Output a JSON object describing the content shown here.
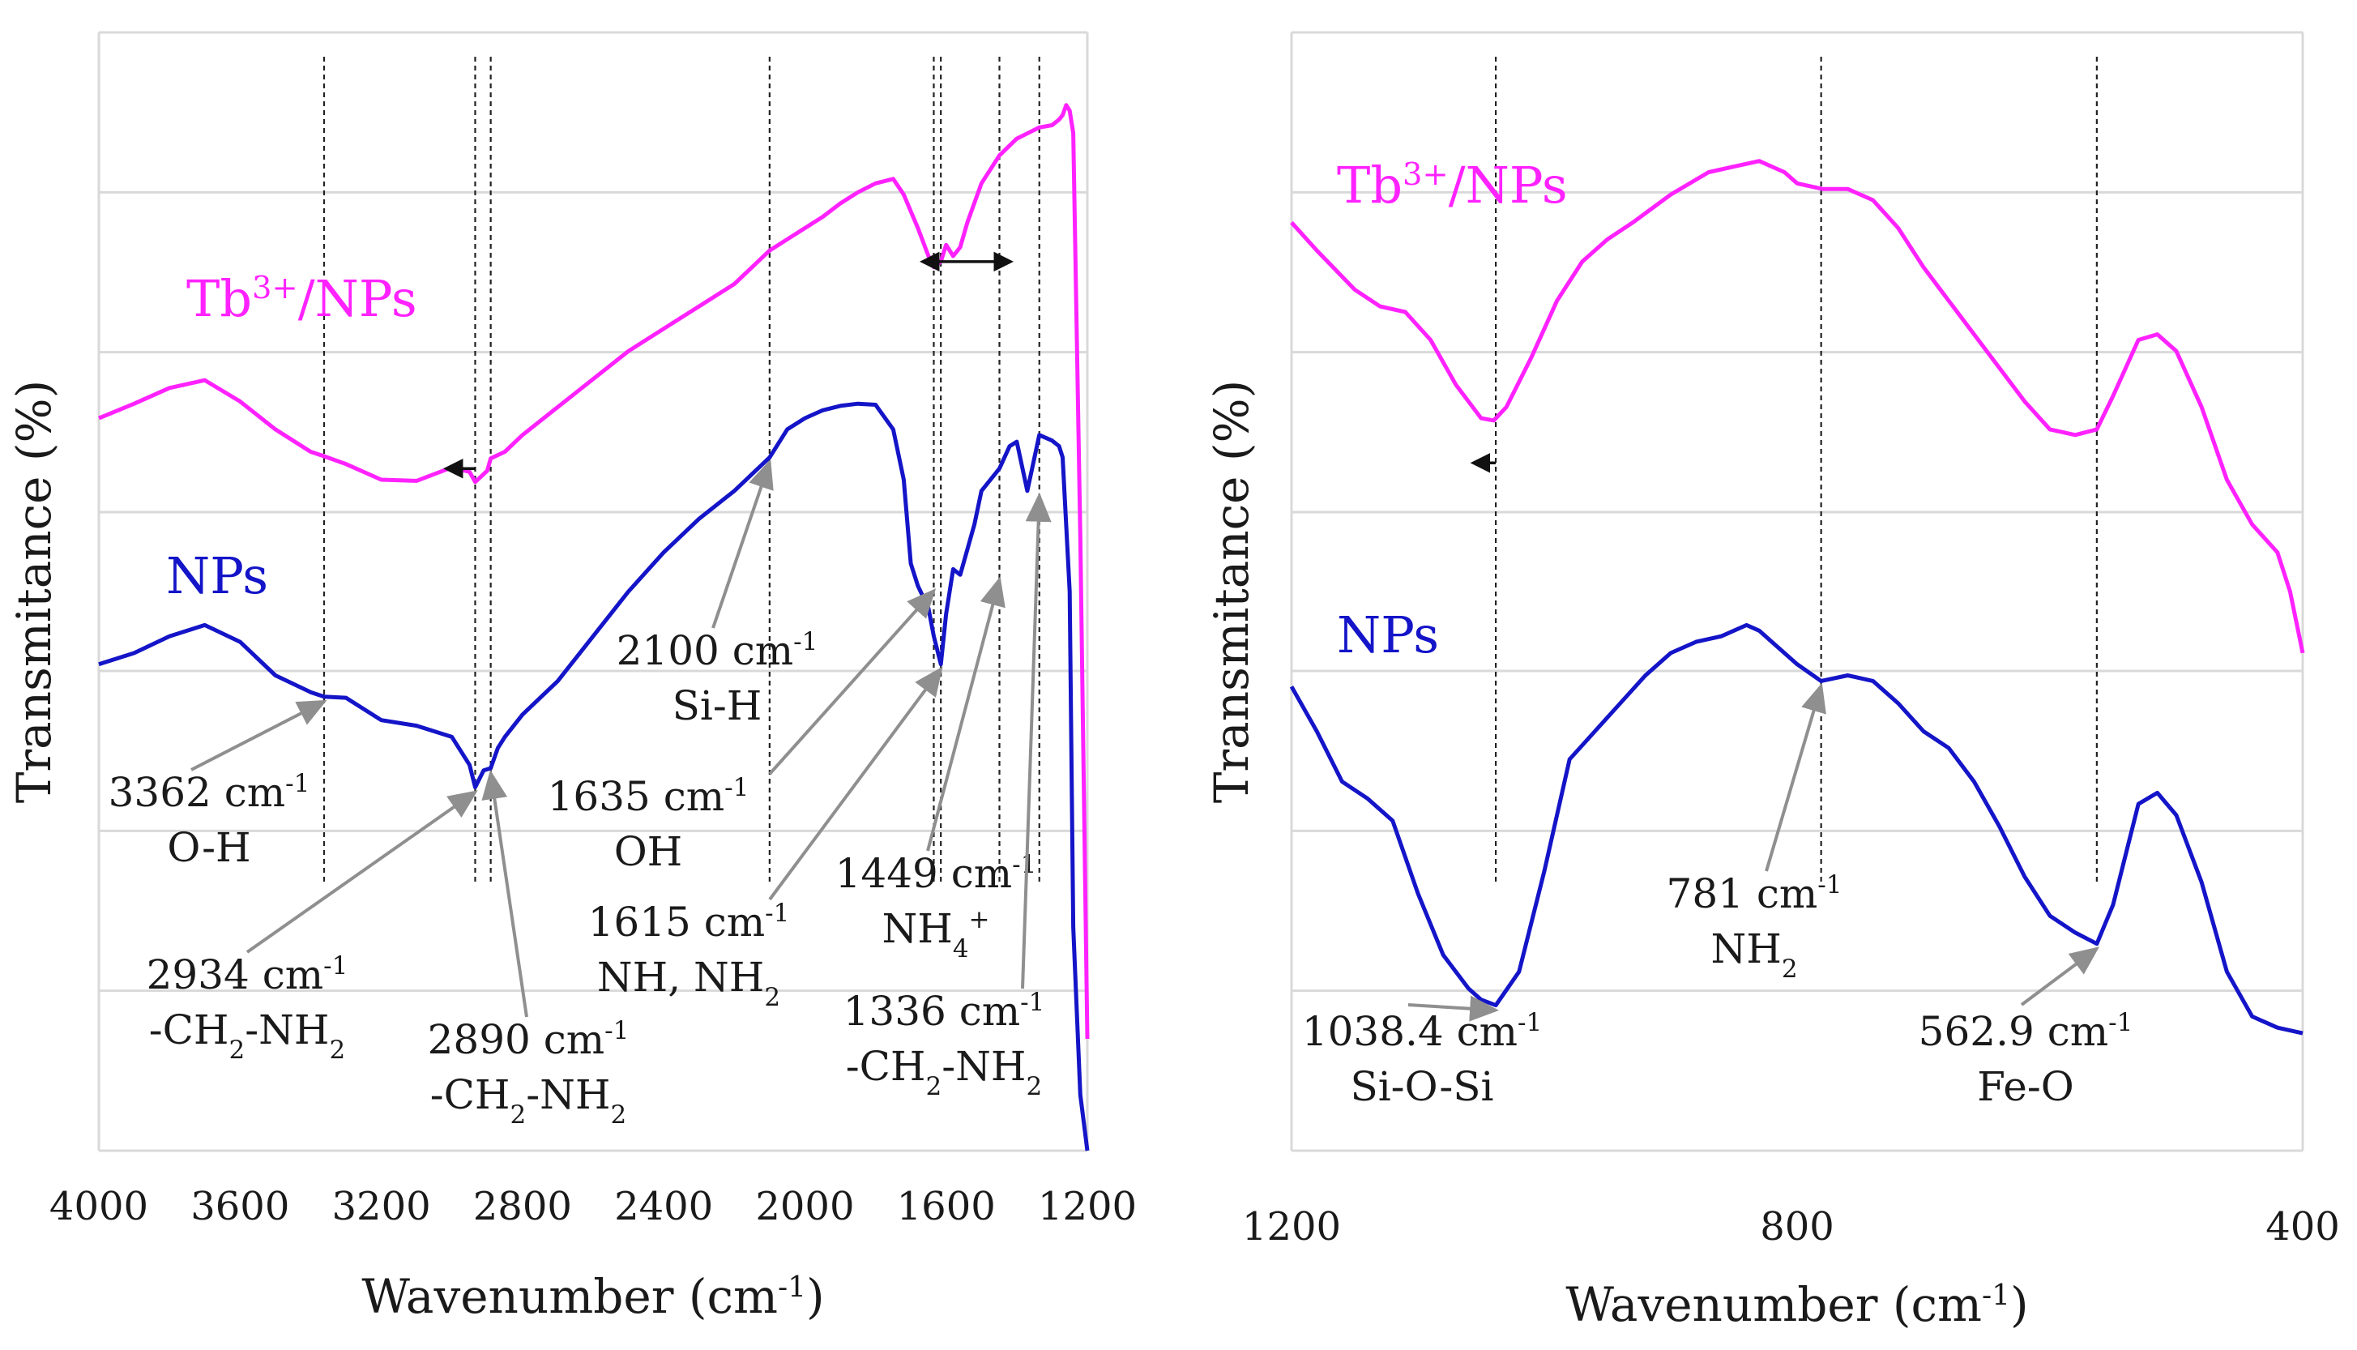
{
  "chart_data": [
    {
      "type": "line",
      "title": "",
      "xlabel": "Wavenumber (cm-1)",
      "ylabel": "Transmitance (%)",
      "xlim": [
        4000,
        1200
      ],
      "ylim": [
        0,
        100
      ],
      "grid": "horizontal",
      "x_ticks": [
        "4000",
        "3600",
        "3200",
        "2800",
        "2400",
        "2000",
        "1600",
        "1200"
      ],
      "x_tick_values": [
        4000,
        3600,
        3200,
        2800,
        2400,
        2000,
        1600,
        1200
      ],
      "y_gridlines": [
        0,
        14.3,
        28.6,
        42.9,
        57.1,
        71.4,
        85.7,
        100
      ],
      "series": [
        {
          "name": "Tb3+/NPs",
          "color": "#ff22ff",
          "x": [
            4000,
            3900,
            3800,
            3700,
            3600,
            3500,
            3400,
            3362,
            3300,
            3200,
            3100,
            3000,
            2950,
            2934,
            2900,
            2890,
            2850,
            2800,
            2700,
            2600,
            2500,
            2400,
            2300,
            2200,
            2150,
            2100,
            2050,
            2000,
            1950,
            1900,
            1850,
            1800,
            1750,
            1720,
            1700,
            1680,
            1650,
            1635,
            1615,
            1600,
            1580,
            1560,
            1540,
            1500,
            1449,
            1400,
            1336,
            1300,
            1280,
            1270,
            1260,
            1250,
            1240,
            1220,
            1200
          ],
          "values": [
            65.5,
            66.8,
            68.2,
            68.9,
            67.0,
            64.5,
            62.5,
            62.1,
            61.4,
            60.0,
            59.9,
            61.1,
            60.7,
            59.8,
            60.8,
            61.9,
            62.5,
            64.0,
            66.5,
            69.0,
            71.5,
            73.5,
            75.5,
            77.5,
            79.0,
            80.5,
            81.5,
            82.5,
            83.5,
            84.7,
            85.7,
            86.5,
            86.9,
            85.5,
            84.0,
            82.5,
            80.0,
            79.0,
            79.5,
            81.0,
            80.0,
            80.8,
            83.0,
            86.5,
            89.0,
            90.5,
            91.5,
            91.7,
            92.2,
            92.6,
            93.5,
            93.0,
            91.0,
            55.0,
            10.0
          ]
        },
        {
          "name": "NPs",
          "color": "#1414c8",
          "x": [
            4000,
            3900,
            3800,
            3700,
            3600,
            3500,
            3400,
            3362,
            3300,
            3200,
            3100,
            3000,
            2950,
            2934,
            2910,
            2890,
            2870,
            2850,
            2800,
            2700,
            2600,
            2500,
            2400,
            2300,
            2200,
            2100,
            2050,
            2000,
            1950,
            1900,
            1850,
            1800,
            1750,
            1720,
            1700,
            1680,
            1650,
            1635,
            1615,
            1600,
            1580,
            1560,
            1520,
            1500,
            1449,
            1420,
            1400,
            1370,
            1336,
            1300,
            1280,
            1270,
            1250,
            1240,
            1220,
            1200
          ],
          "values": [
            43.5,
            44.5,
            46.0,
            47.0,
            45.5,
            42.5,
            41.0,
            40.6,
            40.5,
            38.5,
            38.0,
            37.0,
            34.5,
            32.5,
            34.0,
            34.2,
            36.0,
            37.0,
            39.0,
            42.0,
            46.0,
            50.0,
            53.5,
            56.5,
            59.0,
            62.0,
            64.5,
            65.5,
            66.2,
            66.6,
            66.8,
            66.7,
            64.5,
            60.0,
            52.5,
            50.5,
            48.5,
            46.0,
            43.5,
            48.0,
            52.0,
            51.5,
            56.0,
            59.0,
            61.0,
            63.0,
            63.4,
            59.0,
            64.0,
            63.5,
            63.0,
            62.0,
            50.0,
            20.0,
            5.0,
            0.0
          ]
        }
      ],
      "legend": [
        {
          "label": "Tb",
          "sup": "3+",
          "rest": "/NPs",
          "series": "Tb3+/NPs"
        },
        {
          "label": "NPs",
          "sup": "",
          "rest": "",
          "series": "NPs"
        }
      ],
      "reference_lines": [
        3362,
        2934,
        2890,
        2100,
        1635,
        1615,
        1449,
        1336
      ],
      "annotations": [
        {
          "id": "a3362",
          "lines": [
            [
              {
                "t": "3362 cm"
              },
              {
                "t": "-1",
                "sup": true
              }
            ],
            [
              {
                "t": "O-H"
              }
            ]
          ],
          "x": 3362,
          "y": 40.6,
          "series": "NPs"
        },
        {
          "id": "a2934",
          "lines": [
            [
              {
                "t": "2934 cm"
              },
              {
                "t": "-1",
                "sup": true
              }
            ],
            [
              {
                "t": "-CH"
              },
              {
                "t": "2",
                "sub": true
              },
              {
                "t": "-NH"
              },
              {
                "t": "2",
                "sub": true
              }
            ]
          ],
          "x": 2934,
          "y": 32.5,
          "series": "NPs"
        },
        {
          "id": "a2890",
          "lines": [
            [
              {
                "t": "2890 cm"
              },
              {
                "t": "-1",
                "sup": true
              }
            ],
            [
              {
                "t": "-CH"
              },
              {
                "t": "2",
                "sub": true
              },
              {
                "t": "-NH"
              },
              {
                "t": "2",
                "sub": true
              }
            ]
          ],
          "x": 2890,
          "y": 34.2,
          "series": "NPs"
        },
        {
          "id": "a2100",
          "lines": [
            [
              {
                "t": "2100 cm"
              },
              {
                "t": "-1",
                "sup": true
              }
            ],
            [
              {
                "t": "Si-H"
              }
            ]
          ],
          "x": 2100,
          "y": 62.0,
          "series": "NPs"
        },
        {
          "id": "a1635",
          "lines": [
            [
              {
                "t": "1635 cm"
              },
              {
                "t": "-1",
                "sup": true
              }
            ],
            [
              {
                "t": "OH"
              }
            ]
          ],
          "x": 1635,
          "y": 50.5,
          "series": "NPs"
        },
        {
          "id": "a1615",
          "lines": [
            [
              {
                "t": "1615 cm"
              },
              {
                "t": "-1",
                "sup": true
              }
            ],
            [
              {
                "t": "NH, NH"
              },
              {
                "t": "2",
                "sub": true
              }
            ]
          ],
          "x": 1615,
          "y": 43.5,
          "series": "NPs"
        },
        {
          "id": "a1449",
          "lines": [
            [
              {
                "t": "1449 cm"
              },
              {
                "t": "-1",
                "sup": true
              }
            ],
            [
              {
                "t": "NH"
              },
              {
                "t": "4",
                "sub": true
              },
              {
                "t": "+",
                "sup": true
              }
            ]
          ],
          "x": 1449,
          "y": 51.5,
          "series": "NPs"
        },
        {
          "id": "a1336",
          "lines": [
            [
              {
                "t": "1336 cm"
              },
              {
                "t": "-1",
                "sup": true
              }
            ],
            [
              {
                "t": "-CH"
              },
              {
                "t": "2",
                "sub": true
              },
              {
                "t": "-NH"
              },
              {
                "t": "2",
                "sub": true
              }
            ]
          ],
          "x": 1336,
          "y": 59.0,
          "series": "NPs"
        }
      ],
      "shift_arrows": [
        {
          "from": 2934,
          "to": 2990,
          "y": 61.0,
          "style": "left"
        },
        {
          "from": 1635,
          "to": 1449,
          "y": 79.5,
          "style": "double"
        }
      ]
    },
    {
      "type": "line",
      "title": "",
      "xlabel": "Wavenumber (cm-1)",
      "ylabel": "Transmitance (%)",
      "xlim": [
        1200,
        400
      ],
      "ylim": [
        0,
        100
      ],
      "grid": "horizontal",
      "x_ticks": [
        "1200",
        "800",
        "400"
      ],
      "x_tick_values": [
        1200,
        800,
        400
      ],
      "y_gridlines": [
        0,
        14.3,
        28.6,
        42.9,
        57.1,
        71.4,
        85.7,
        100
      ],
      "series": [
        {
          "name": "Tb3+/NPs",
          "color": "#ff22ff",
          "x": [
            1200,
            1180,
            1150,
            1130,
            1110,
            1090,
            1070,
            1050,
            1040,
            1030,
            1010,
            990,
            970,
            950,
            930,
            900,
            870,
            850,
            830,
            820,
            810,
            800,
            780,
            760,
            740,
            720,
            700,
            680,
            660,
            640,
            620,
            600,
            580,
            562.9,
            550,
            530,
            515,
            500,
            480,
            460,
            440,
            420,
            410,
            400
          ],
          "values": [
            83.0,
            80.5,
            77.0,
            75.5,
            75.0,
            72.5,
            68.5,
            65.5,
            65.3,
            66.5,
            71.0,
            76.0,
            79.5,
            81.5,
            83.0,
            85.5,
            87.5,
            88.0,
            88.5,
            88.0,
            87.5,
            86.5,
            86.0,
            86.0,
            85.0,
            82.5,
            79.0,
            76.0,
            73.0,
            70.0,
            67.0,
            64.5,
            64.0,
            64.5,
            67.5,
            72.5,
            73.0,
            71.5,
            66.5,
            60.0,
            56.0,
            53.5,
            50.0,
            44.5
          ]
        },
        {
          "name": "NPs",
          "color": "#1414c8",
          "x": [
            1200,
            1180,
            1160,
            1140,
            1120,
            1100,
            1080,
            1060,
            1050,
            1038.4,
            1020,
            1000,
            980,
            960,
            940,
            920,
            900,
            880,
            860,
            840,
            830,
            820,
            800,
            781,
            760,
            740,
            720,
            700,
            680,
            660,
            640,
            620,
            600,
            580,
            562.9,
            550,
            530,
            515,
            500,
            480,
            460,
            440,
            420,
            400
          ],
          "values": [
            41.5,
            37.5,
            33.0,
            31.5,
            29.5,
            23.0,
            17.5,
            14.5,
            13.5,
            13.0,
            16.0,
            25.0,
            35.0,
            37.5,
            40.0,
            42.5,
            44.5,
            45.5,
            46.0,
            47.0,
            46.5,
            45.5,
            43.5,
            42.0,
            42.5,
            42.0,
            40.0,
            37.5,
            36.0,
            33.0,
            29.0,
            24.5,
            21.0,
            19.5,
            18.5,
            22.0,
            31.0,
            32.0,
            30.0,
            24.0,
            16.0,
            12.0,
            11.0,
            10.5
          ]
        }
      ],
      "legend": [
        {
          "label": "Tb",
          "sup": "3+",
          "rest": "/NPs",
          "series": "Tb3+/NPs"
        },
        {
          "label": "NPs",
          "sup": "",
          "rest": "",
          "series": "NPs"
        }
      ],
      "reference_lines": [
        1038.4,
        781,
        562.9
      ],
      "annotations": [
        {
          "id": "a1038",
          "lines": [
            [
              {
                "t": "1038.4 cm"
              },
              {
                "t": "-1",
                "sup": true
              }
            ],
            [
              {
                "t": "Si-O-Si"
              }
            ]
          ],
          "x": 1038.4,
          "y": 13.0,
          "series": "NPs"
        },
        {
          "id": "a781",
          "lines": [
            [
              {
                "t": "781 cm"
              },
              {
                "t": "-1",
                "sup": true
              }
            ],
            [
              {
                "t": "NH"
              },
              {
                "t": "2",
                "sub": true
              }
            ]
          ],
          "x": 781,
          "y": 42.0,
          "series": "NPs"
        },
        {
          "id": "a562",
          "lines": [
            [
              {
                "t": "562.9 cm"
              },
              {
                "t": "-1",
                "sup": true
              }
            ],
            [
              {
                "t": "Fe-O"
              }
            ]
          ],
          "x": 562.9,
          "y": 18.5,
          "series": "NPs"
        }
      ],
      "shift_arrows": [
        {
          "from": 1038.4,
          "to": 1060,
          "y": 61.5,
          "style": "left"
        }
      ]
    }
  ]
}
